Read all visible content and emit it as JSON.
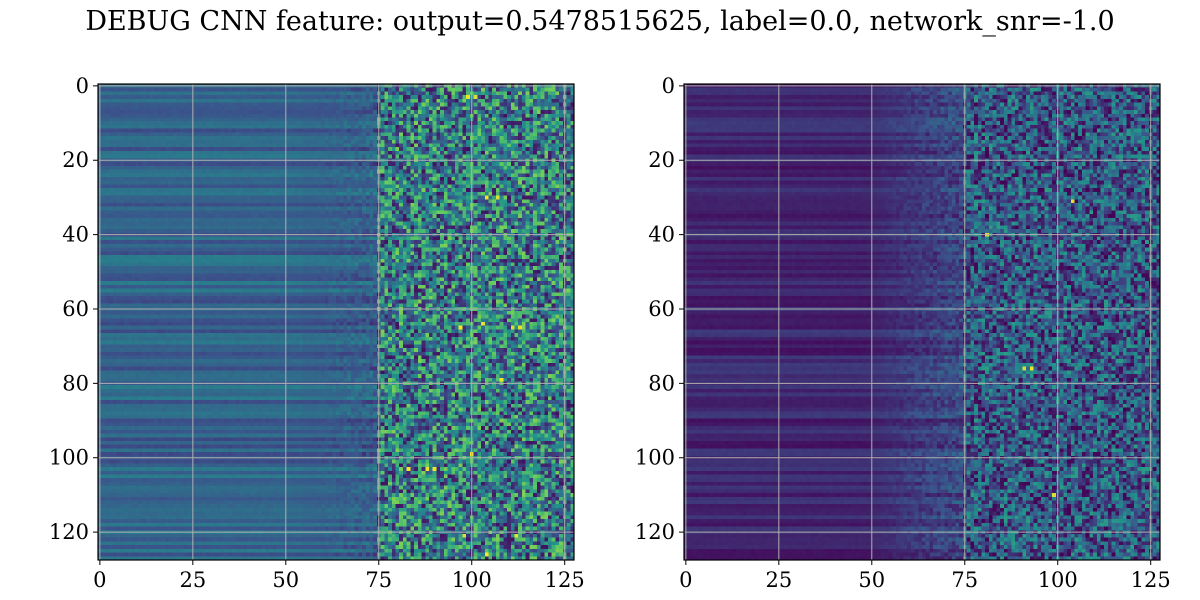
{
  "title": "DEBUG CNN feature: output=0.5478515625, label=0.0, network_snr=-1.0",
  "chart_data": [
    {
      "type": "heatmap",
      "rows": 128,
      "cols": 128,
      "colormap": "viridis",
      "grid": true,
      "x_ticks": [
        0,
        25,
        50,
        75,
        100,
        125
      ],
      "y_ticks": [
        0,
        20,
        40,
        60,
        80,
        100,
        120
      ],
      "xlim": [
        -0.5,
        127.5
      ],
      "ylim": [
        127.5,
        -0.5
      ],
      "pattern": "columns 0-75 smooth row-banded values; columns 75-127 noisy high-variance values; bright hot spots near rows 3, 30, 65, 103, 121",
      "mean_level_left": 0.3,
      "mean_level_right": 0.45
    },
    {
      "type": "heatmap",
      "rows": 128,
      "cols": 128,
      "colormap": "viridis",
      "grid": true,
      "x_ticks": [
        0,
        25,
        50,
        75,
        100,
        125
      ],
      "y_ticks": [
        0,
        20,
        40,
        60,
        80,
        100,
        120
      ],
      "xlim": [
        -0.5,
        127.5
      ],
      "ylim": [
        127.5,
        -0.5
      ],
      "pattern": "columns 0-50 dark row-banded values; columns 50-127 noisy low-mid values; bright hot spots near rows 31 and 76",
      "mean_level_left": 0.1,
      "mean_level_right": 0.25
    }
  ]
}
